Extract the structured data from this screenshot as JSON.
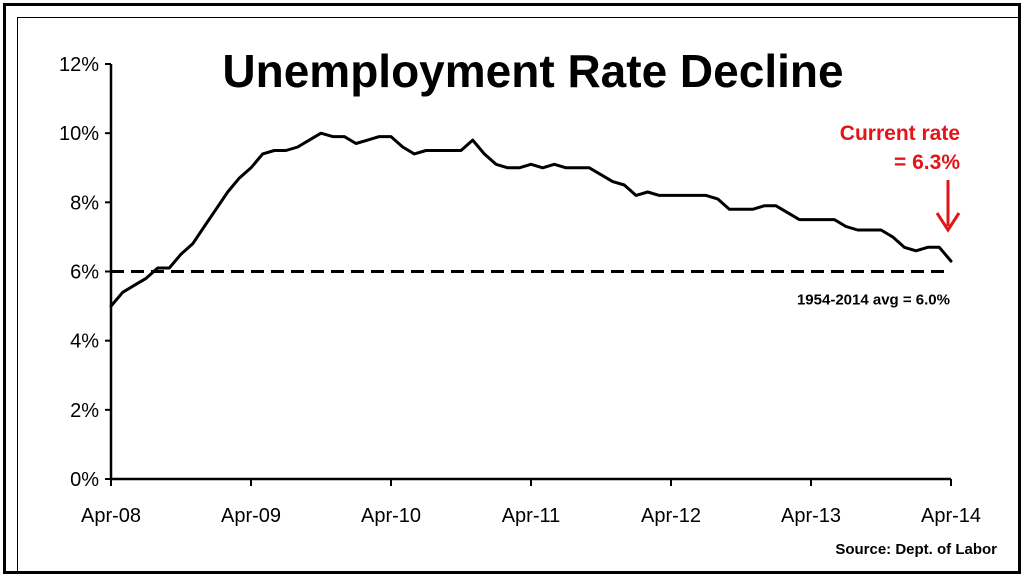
{
  "chart_data": {
    "type": "line",
    "title": "Unemployment Rate Decline",
    "xlabel": "",
    "ylabel": "",
    "ylim": [
      0,
      12
    ],
    "yticks": [
      "0%",
      "2%",
      "4%",
      "6%",
      "8%",
      "10%",
      "12%"
    ],
    "xticks": [
      "Apr-08",
      "Apr-09",
      "Apr-10",
      "Apr-11",
      "Apr-12",
      "Apr-13",
      "Apr-14"
    ],
    "x_start": "Apr-08",
    "x_end": "Apr-14",
    "series": [
      {
        "name": "",
        "color": "#000000",
        "values": [
          5.0,
          5.4,
          5.6,
          5.8,
          6.1,
          6.1,
          6.5,
          6.8,
          7.3,
          7.8,
          8.3,
          8.7,
          9.0,
          9.4,
          9.5,
          9.5,
          9.6,
          9.8,
          10.0,
          9.9,
          9.9,
          9.7,
          9.8,
          9.9,
          9.9,
          9.6,
          9.4,
          9.5,
          9.5,
          9.5,
          9.5,
          9.8,
          9.4,
          9.1,
          9.0,
          9.0,
          9.1,
          9.0,
          9.1,
          9.0,
          9.0,
          9.0,
          8.8,
          8.6,
          8.5,
          8.2,
          8.3,
          8.2,
          8.2,
          8.2,
          8.2,
          8.2,
          8.1,
          7.8,
          7.8,
          7.8,
          7.9,
          7.9,
          7.7,
          7.5,
          7.5,
          7.5,
          7.5,
          7.3,
          7.2,
          7.2,
          7.2,
          7.0,
          6.7,
          6.6,
          6.7,
          6.7,
          6.3
        ]
      }
    ],
    "reference_line": {
      "value": 6.0,
      "label": "1954-2014 avg = 6.0%",
      "style": "dashed"
    },
    "annotation": {
      "line1": "Current rate",
      "line2": "= 6.3%",
      "color": "#e3141a"
    },
    "source": "Source: Dept. of Labor",
    "grid": false,
    "legend": "none"
  }
}
